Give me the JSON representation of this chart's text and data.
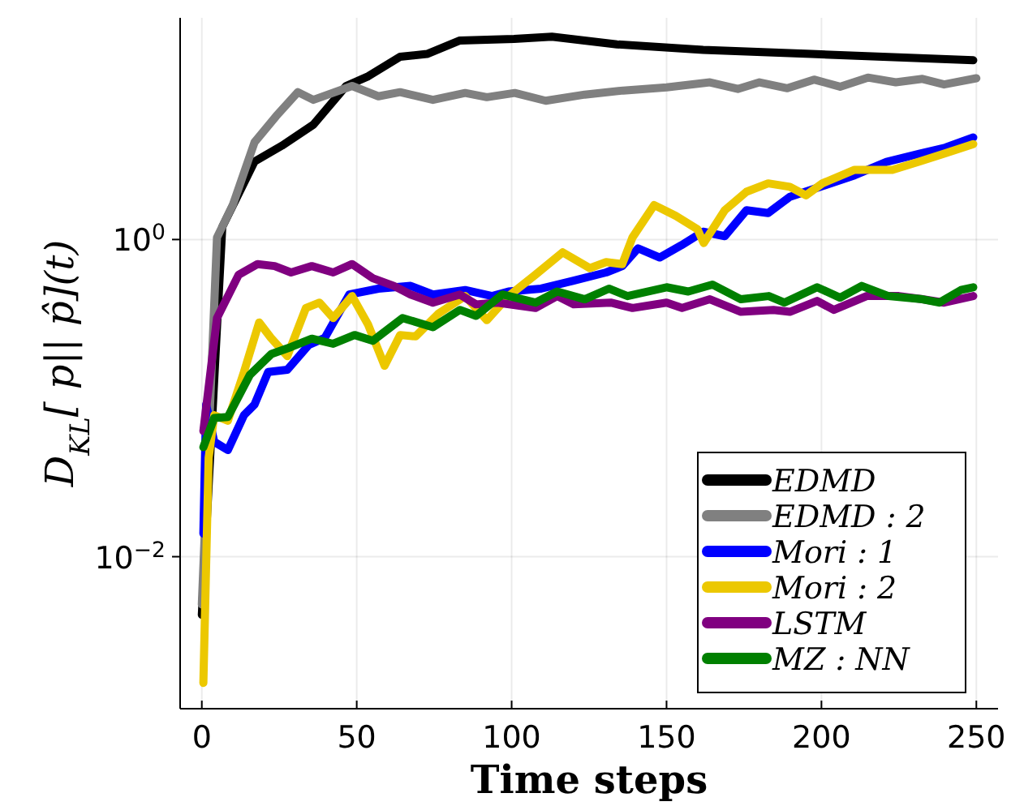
{
  "chart_data": {
    "type": "line",
    "xlabel": "Time steps",
    "ylabel": "D$_{KL}$[ p|| p̂](t)",
    "log": "y",
    "grid": true,
    "legend": "bottom right",
    "line_style": "solid",
    "marker": "none",
    "xlim": [
      -7,
      257
    ],
    "xticks": [
      0,
      50,
      100,
      150,
      200,
      250
    ],
    "ylim": [
      0.0011,
      25
    ],
    "yticks": [
      {
        "value": 0.01,
        "label": "10$^{−2}$"
      },
      {
        "value": 1,
        "label": "10$^{0}$"
      }
    ],
    "series": [
      {
        "name": "EDMD",
        "color": "#000000",
        "x": [
          0,
          6.6,
          17,
          25.8,
          36,
          46.6,
          53.7,
          64,
          72.7,
          83.3,
          100.8,
          113,
          134,
          161.8,
          196.7,
          249
        ],
        "values": [
          0.0043,
          1.2,
          3.1,
          3.9,
          5.3,
          9.3,
          10.7,
          14.2,
          14.8,
          18,
          18.4,
          19,
          17,
          15.7,
          14.8,
          13.5
        ]
      },
      {
        "name": "EDMD : 2",
        "color": "#808080",
        "x": [
          0,
          4.9,
          10,
          17,
          24,
          31,
          36,
          48.5,
          57,
          64,
          74.6,
          85,
          92,
          101,
          111,
          123.6,
          136,
          150,
          164,
          173,
          180,
          189,
          197.6,
          206,
          215,
          224,
          232.6,
          239.6,
          250
        ],
        "values": [
          0.005,
          1.03,
          1.65,
          4.1,
          6.0,
          8.5,
          7.6,
          9.3,
          8.0,
          8.5,
          7.6,
          8.4,
          7.9,
          8.4,
          7.5,
          8.2,
          8.7,
          9.1,
          9.8,
          8.9,
          9.8,
          9.0,
          10.2,
          9.2,
          10.5,
          9.8,
          10.3,
          9.5,
          10.4
        ]
      },
      {
        "name": "Mori : 1",
        "color": "#0000ff",
        "x": [
          0.5,
          1.4,
          4,
          8.4,
          13.6,
          17,
          21.4,
          27.6,
          34.5,
          39.7,
          47.6,
          57,
          67.4,
          74.6,
          85,
          93.7,
          99,
          109.5,
          120,
          130.5,
          135.7,
          140.8,
          147.8,
          154.8,
          161.8,
          168.8,
          175.8,
          182.8,
          189.8,
          200.3,
          210.7,
          221,
          231.6,
          240,
          249
        ],
        "values": [
          0.014,
          0.091,
          0.053,
          0.047,
          0.078,
          0.091,
          0.146,
          0.151,
          0.216,
          0.24,
          0.45,
          0.49,
          0.51,
          0.45,
          0.48,
          0.44,
          0.47,
          0.49,
          0.55,
          0.62,
          0.68,
          0.88,
          0.77,
          0.92,
          1.12,
          1.05,
          1.53,
          1.47,
          1.86,
          2.17,
          2.54,
          3.09,
          3.47,
          3.8,
          4.4
        ]
      },
      {
        "name": "Mori : 2",
        "color": "#ecc800",
        "x": [
          0.5,
          2.2,
          4,
          8.4,
          13.6,
          18.5,
          22.3,
          27.6,
          33.6,
          38,
          42.4,
          48.5,
          53.7,
          59,
          64,
          69,
          76.3,
          85,
          92,
          99,
          107.7,
          116.5,
          125.2,
          130.5,
          135.7,
          139,
          146,
          153,
          160,
          162,
          168.8,
          175.8,
          182.8,
          189.8,
          195,
          200.3,
          210.7,
          222.9,
          231.6,
          240,
          249
        ],
        "values": [
          0.0016,
          0.042,
          0.078,
          0.072,
          0.146,
          0.3,
          0.24,
          0.184,
          0.37,
          0.4,
          0.32,
          0.44,
          0.29,
          0.16,
          0.25,
          0.245,
          0.34,
          0.44,
          0.31,
          0.44,
          0.6,
          0.83,
          0.66,
          0.72,
          0.7,
          1.03,
          1.65,
          1.41,
          1.16,
          0.95,
          1.53,
          2.0,
          2.26,
          2.15,
          1.9,
          2.26,
          2.75,
          2.75,
          3.1,
          3.5,
          4.0
        ]
      },
      {
        "name": "LSTM",
        "color": "#800080",
        "x": [
          0.5,
          4.9,
          11.9,
          18,
          23.5,
          28.8,
          35.5,
          42.4,
          48.5,
          55.2,
          62,
          67.4,
          74.6,
          83.3,
          88.5,
          95.5,
          107.7,
          114.7,
          120,
          132,
          139,
          150,
          155,
          164,
          174,
          184.5,
          189.8,
          198.6,
          204,
          214.6,
          225,
          232.6,
          239.6,
          249
        ],
        "values": [
          0.062,
          0.32,
          0.6,
          0.7,
          0.68,
          0.62,
          0.68,
          0.62,
          0.7,
          0.57,
          0.51,
          0.45,
          0.4,
          0.45,
          0.39,
          0.4,
          0.37,
          0.44,
          0.39,
          0.4,
          0.37,
          0.4,
          0.37,
          0.42,
          0.35,
          0.36,
          0.35,
          0.41,
          0.36,
          0.44,
          0.44,
          0.42,
          0.4,
          0.44
        ]
      },
      {
        "name": "MZ : NN",
        "color": "#008000",
        "x": [
          0.5,
          4,
          8.4,
          15.5,
          22.5,
          28.8,
          35.5,
          42.4,
          49.3,
          55.2,
          64.8,
          74.6,
          83.3,
          88.5,
          97,
          107.7,
          114.7,
          123.6,
          131.4,
          137.4,
          150,
          157,
          164.8,
          174,
          183,
          188,
          198.6,
          206,
          213,
          221.6,
          232.6,
          238,
          245,
          249
        ],
        "values": [
          0.049,
          0.075,
          0.076,
          0.14,
          0.19,
          0.21,
          0.237,
          0.22,
          0.25,
          0.23,
          0.32,
          0.28,
          0.36,
          0.33,
          0.45,
          0.4,
          0.47,
          0.42,
          0.49,
          0.44,
          0.5,
          0.47,
          0.52,
          0.42,
          0.44,
          0.4,
          0.5,
          0.43,
          0.51,
          0.44,
          0.42,
          0.4,
          0.48,
          0.5
        ]
      }
    ]
  }
}
